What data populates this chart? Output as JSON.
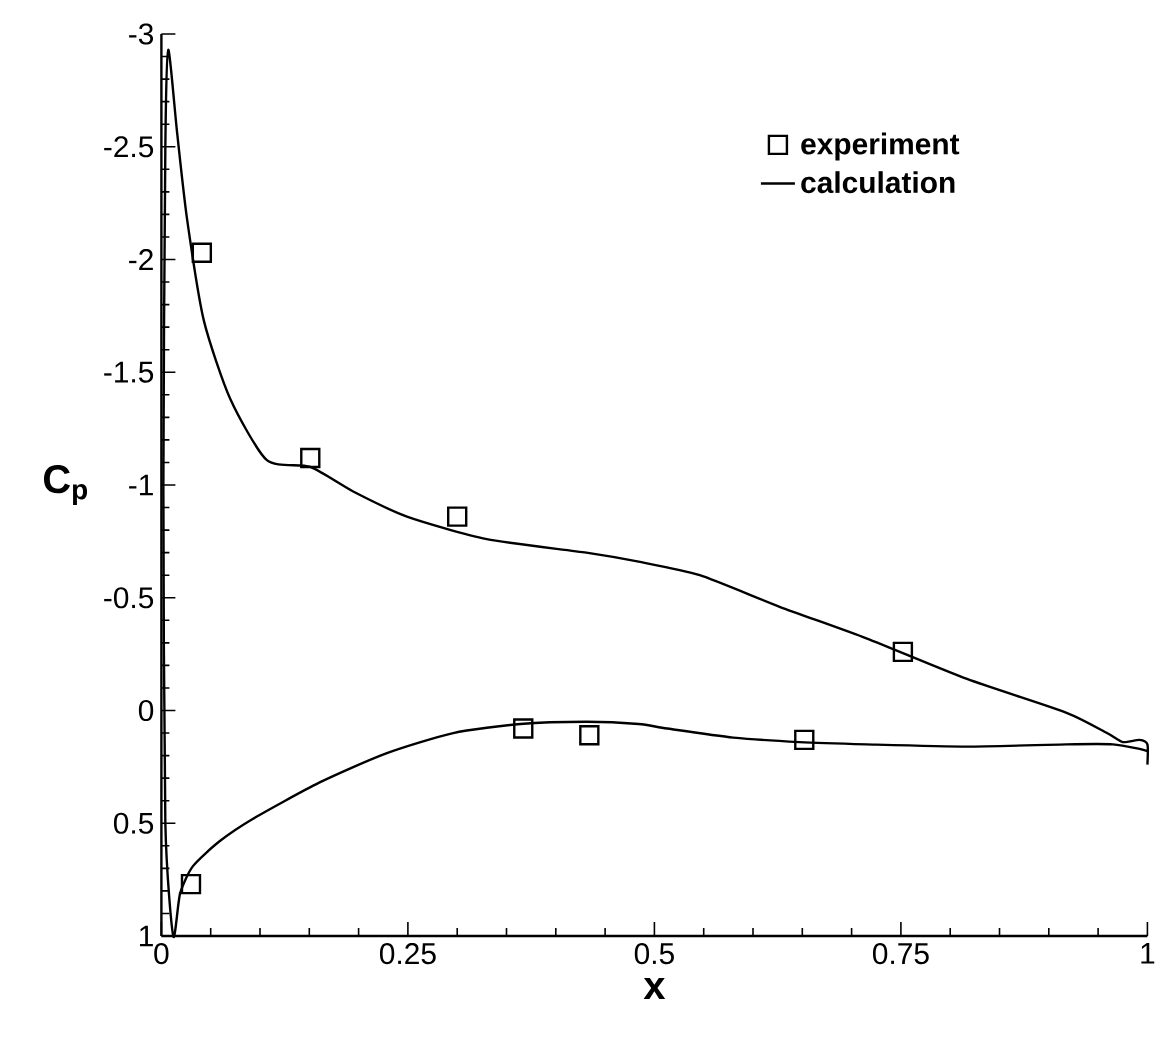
{
  "chart_data": {
    "type": "line",
    "xlabel": "x",
    "ylabel": "C$_{p}$",
    "xlim": [
      0,
      1
    ],
    "ylim": [
      1,
      -3
    ],
    "xticks": [
      0,
      0.25,
      0.5,
      0.75,
      1
    ],
    "yticks": [
      -3,
      -2.5,
      -2,
      -1.5,
      -1,
      -0.5,
      0,
      0.5,
      1
    ],
    "legend": "top right",
    "grid": false,
    "series": [
      {
        "name": "experiment",
        "type": "scatter",
        "marker": "square",
        "color": "#000000",
        "x": [
          0.041,
          0.151,
          0.3,
          0.367,
          0.434,
          0.652,
          0.752,
          0.03
        ],
        "values": [
          -2.03,
          -1.12,
          -0.86,
          0.08,
          0.11,
          0.13,
          -0.26,
          0.77
        ]
      },
      {
        "name": "calculation",
        "type": "line",
        "marker": "none",
        "line_style": "solid",
        "color": "#000000",
        "x": [
          1.0,
          0.992,
          0.965,
          0.918,
          0.817,
          0.715,
          0.647,
          0.58,
          0.513,
          0.484,
          0.431,
          0.364,
          0.296,
          0.228,
          0.16,
          0.093,
          0.059,
          0.032,
          0.019,
          0.012,
          0.004,
          0.002,
          0.004,
          0.007,
          0.016,
          0.026,
          0.043,
          0.07,
          0.107,
          0.151,
          0.195,
          0.249,
          0.33,
          0.431,
          0.484,
          0.546,
          0.627,
          0.715,
          0.817,
          0.918,
          0.959,
          0.975,
          0.992,
          1.0,
          1.0
        ],
        "values": [
          0.18,
          0.17,
          0.15,
          0.15,
          0.16,
          0.15,
          0.14,
          0.12,
          0.08,
          0.06,
          0.05,
          0.06,
          0.1,
          0.19,
          0.32,
          0.48,
          0.58,
          0.69,
          0.81,
          1.0,
          0.5,
          -1.0,
          -2.5,
          -2.93,
          -2.56,
          -2.18,
          -1.73,
          -1.38,
          -1.11,
          -1.08,
          -0.97,
          -0.86,
          -0.76,
          -0.7,
          -0.66,
          -0.6,
          -0.46,
          -0.32,
          -0.14,
          0.01,
          0.1,
          0.14,
          0.13,
          0.15,
          0.24
        ]
      }
    ]
  }
}
